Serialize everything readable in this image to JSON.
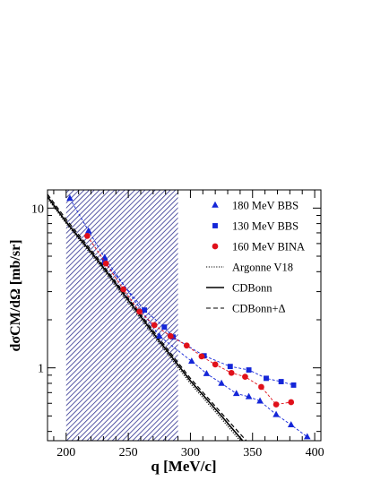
{
  "chart_data": {
    "type": "scatter",
    "xlabel": "q [MeV/c]",
    "ylabel": "dσCM/dΩ [mb/sr]",
    "xlim": [
      185,
      405
    ],
    "ylim": [
      0.35,
      13
    ],
    "yscale": "log",
    "grid": false,
    "legend_position": "top-right",
    "x_ticks": [
      200,
      250,
      300,
      350,
      400
    ],
    "y_ticks": [
      1,
      10
    ],
    "shaded_region": {
      "x_range": [
        200,
        290
      ],
      "color": "#2d2f8f",
      "pattern": "diagonal-hatch"
    },
    "series": [
      {
        "name": "180 MeV BBS",
        "kind": "data",
        "marker": "triangle",
        "color": "#1426d8",
        "x": [
          203,
          218,
          231,
          275,
          301,
          313,
          325,
          337,
          347,
          356,
          369,
          381,
          394
        ],
        "y": [
          11.5,
          7.2,
          4.9,
          1.58,
          1.1,
          0.92,
          0.8,
          0.69,
          0.66,
          0.62,
          0.51,
          0.44,
          0.37
        ]
      },
      {
        "name": "130 MeV BBS",
        "kind": "data",
        "marker": "square",
        "color": "#1426d8",
        "x": [
          231,
          263,
          279,
          286,
          311,
          332,
          347,
          361,
          373,
          383
        ],
        "y": [
          4.6,
          2.3,
          1.8,
          1.56,
          1.19,
          1.02,
          0.97,
          0.86,
          0.82,
          0.78
        ]
      },
      {
        "name": "160 MeV BINA",
        "kind": "data",
        "marker": "circle",
        "color": "#e0101a",
        "x": [
          217,
          232,
          246,
          259,
          271,
          284,
          297,
          309,
          320,
          333,
          344,
          357,
          369,
          381
        ],
        "y": [
          6.7,
          4.5,
          3.1,
          2.25,
          1.85,
          1.58,
          1.38,
          1.18,
          1.05,
          0.93,
          0.88,
          0.76,
          0.59,
          0.61
        ]
      },
      {
        "name": "Argonne V18",
        "kind": "curve",
        "line_style": "dotted",
        "color": "#000000",
        "x": [
          185,
          200,
          225,
          250,
          275,
          300,
          325,
          340
        ],
        "y": [
          11.5,
          8.0,
          4.6,
          2.55,
          1.42,
          0.8,
          0.48,
          0.35
        ]
      },
      {
        "name": "CDBonn",
        "kind": "curve",
        "line_style": "solid",
        "color": "#000000",
        "x": [
          185,
          200,
          225,
          250,
          275,
          300,
          325,
          342
        ],
        "y": [
          11.8,
          8.2,
          4.75,
          2.65,
          1.47,
          0.83,
          0.5,
          0.35
        ]
      },
      {
        "name": "CDBonn+Δ",
        "kind": "curve",
        "line_style": "dashed",
        "color": "#000000",
        "x": [
          185,
          200,
          225,
          250,
          275,
          300,
          325,
          345
        ],
        "y": [
          12.2,
          8.5,
          4.9,
          2.72,
          1.52,
          0.86,
          0.52,
          0.35
        ]
      }
    ]
  }
}
